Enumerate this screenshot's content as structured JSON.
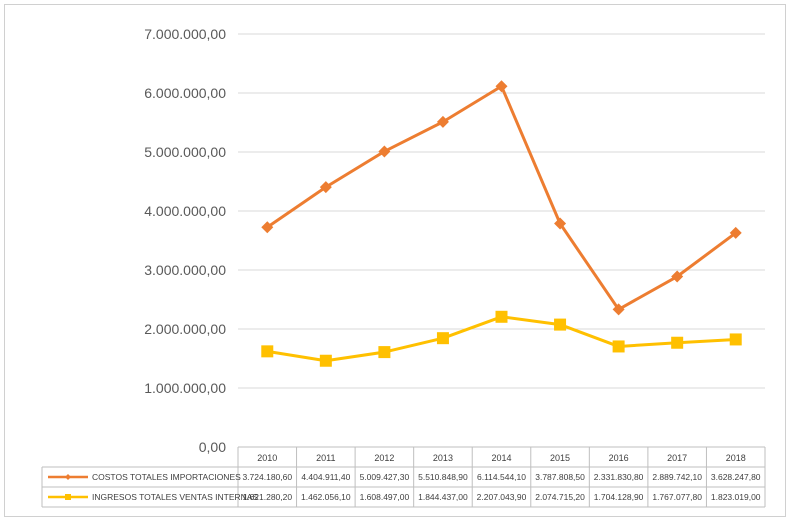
{
  "chart_data": {
    "type": "line",
    "categories": [
      "2010",
      "2011",
      "2012",
      "2013",
      "2014",
      "2015",
      "2016",
      "2017",
      "2018"
    ],
    "series": [
      {
        "name": "COSTOS TOTALES IMPORTACIONES",
        "color": "#ED7D31",
        "marker": "diamond",
        "values": [
          3724180.6,
          4404911.4,
          5009427.3,
          5510848.9,
          6114544.1,
          3787808.5,
          2331830.8,
          2889742.1,
          3628247.8
        ],
        "labels": [
          "3.724.180,60",
          "4.404.911,40",
          "5.009.427,30",
          "5.510.848,90",
          "6.114.544,10",
          "3.787.808,50",
          "2.331.830,80",
          "2.889.742,10",
          "3.628.247,80"
        ]
      },
      {
        "name": "INGRESOS TOTALES VENTAS INTERNAS",
        "color": "#FFC000",
        "marker": "square",
        "values": [
          1621280.2,
          1462056.1,
          1608497.0,
          1844437.0,
          2207043.9,
          2074715.2,
          1704128.9,
          1767077.8,
          1823019.0
        ],
        "labels": [
          "1.621.280,20",
          "1.462.056,10",
          "1.608.497,00",
          "1.844.437,00",
          "2.207.043,90",
          "2.074.715,20",
          "1.704.128,90",
          "1.767.077,80",
          "1.823.019,00"
        ]
      }
    ],
    "yticks": [
      "0,00",
      "1.000.000,00",
      "2.000.000,00",
      "3.000.000,00",
      "4.000.000,00",
      "5.000.000,00",
      "6.000.000,00",
      "7.000.000,00"
    ],
    "ylim": [
      0,
      7000000
    ],
    "grid": true,
    "legend": "data-table"
  }
}
